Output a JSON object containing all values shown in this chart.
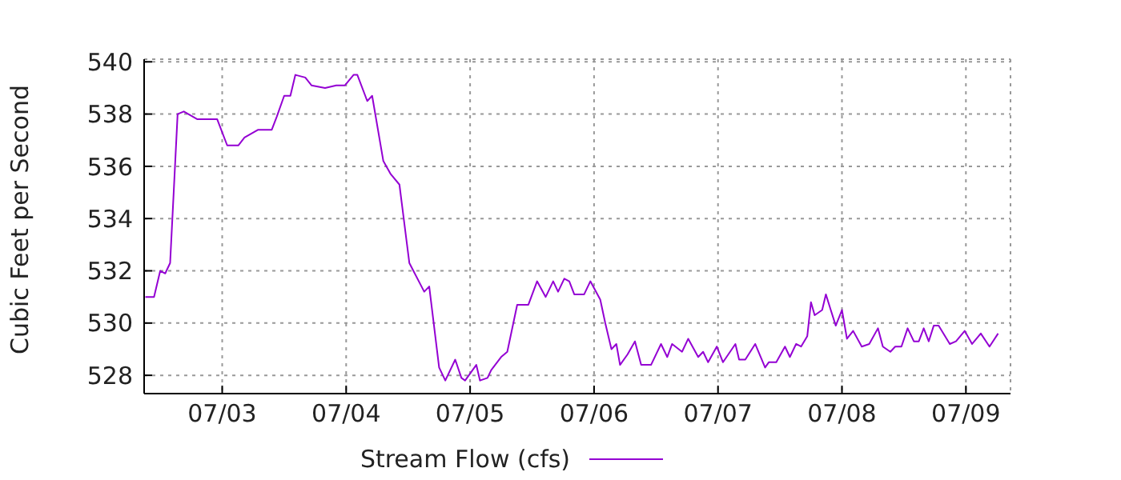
{
  "chart_data": {
    "type": "line",
    "ylabel": "Cubic Feet per Second",
    "legend": "bottom",
    "grid": true,
    "marker": "none",
    "line_style": "solid",
    "xlim": [
      "--07-02T08:53",
      "--07-09T08:38"
    ],
    "ylim": [
      527.3,
      540.1
    ],
    "xticks": [
      {
        "value": "--07-03",
        "label": "07/03"
      },
      {
        "value": "--07-04",
        "label": "07/04"
      },
      {
        "value": "--07-05",
        "label": "07/05"
      },
      {
        "value": "--07-06",
        "label": "07/06"
      },
      {
        "value": "--07-07",
        "label": "07/07"
      },
      {
        "value": "--07-08",
        "label": "07/08"
      },
      {
        "value": "--07-09",
        "label": "07/09"
      }
    ],
    "yticks": [
      528,
      530,
      532,
      534,
      536,
      538,
      540
    ],
    "x": [
      "--07-02T09:07",
      "--07-02T10:48",
      "--07-02T12:00",
      "--07-02T12:58",
      "--07-02T13:55",
      "--07-02T14:38",
      "--07-02T15:22",
      "--07-02T16:34",
      "--07-02T19:12",
      "--07-02T23:02",
      "--07-03T00:58",
      "--07-03T03:07",
      "--07-03T04:19",
      "--07-03T06:58",
      "--07-03T09:36",
      "--07-03T10:34",
      "--07-03T12:00",
      "--07-03T13:12",
      "--07-03T14:10",
      "--07-03T16:05",
      "--07-03T17:17",
      "--07-03T19:55",
      "--07-03T22:05",
      "--07-03T23:46",
      "--07-04T01:26",
      "--07-04T02:10",
      "--07-04T04:05",
      "--07-04T05:02",
      "--07-04T07:12",
      "--07-04T08:38",
      "--07-04T10:19",
      "--07-04T12:14",
      "--07-04T15:07",
      "--07-04T16:05",
      "--07-04T18:00",
      "--07-04T19:12",
      "--07-04T21:07",
      "--07-04T22:19",
      "--07-04T23:02",
      "--07-05T01:12",
      "--07-05T01:55",
      "--07-05T03:22",
      "--07-05T04:05",
      "--07-05T06:00",
      "--07-05T07:12",
      "--07-05T09:07",
      "--07-05T11:17",
      "--07-05T12:58",
      "--07-05T14:38",
      "--07-05T16:05",
      "--07-05T17:02",
      "--07-05T18:14",
      "--07-05T19:12",
      "--07-05T20:10",
      "--07-05T22:05",
      "--07-05T23:17",
      "--07-06T01:12",
      "--07-06T02:10",
      "--07-06T03:22",
      "--07-06T04:19",
      "--07-06T05:02",
      "--07-06T06:29",
      "--07-06T07:55",
      "--07-06T09:07",
      "--07-06T11:02",
      "--07-06T12:58",
      "--07-06T14:10",
      "--07-06T15:07",
      "--07-06T17:02",
      "--07-06T18:14",
      "--07-06T20:10",
      "--07-06T21:07",
      "--07-06T22:05",
      "--07-06T23:46",
      "--07-07T00:58",
      "--07-07T03:22",
      "--07-07T04:05",
      "--07-07T05:17",
      "--07-07T07:12",
      "--07-07T09:07",
      "--07-07T09:50",
      "--07-07T11:17",
      "--07-07T12:58",
      "--07-07T13:55",
      "--07-07T15:07",
      "--07-07T16:05",
      "--07-07T17:17",
      "--07-07T18:00",
      "--07-07T18:43",
      "--07-07T20:10",
      "--07-07T20:53",
      "--07-07T21:50",
      "--07-07T22:48",
      "--07-08T00:00",
      "--07-08T00:58",
      "--07-08T02:10",
      "--07-08T03:50",
      "--07-08T05:17",
      "--07-08T06:58",
      "--07-08T07:55",
      "--07-08T09:22",
      "--07-08T10:19",
      "--07-08T11:31",
      "--07-08T12:43",
      "--07-08T13:55",
      "--07-08T14:53",
      "--07-08T15:50",
      "--07-08T16:48",
      "--07-08T17:46",
      "--07-08T18:43",
      "--07-08T20:53",
      "--07-08T22:05",
      "--07-08T23:46",
      "--07-09T01:12",
      "--07-09T02:53",
      "--07-09T04:34",
      "--07-09T06:14"
    ],
    "series": [
      {
        "name": "Stream Flow (cfs)",
        "color": "#9400d3",
        "values": [
          531.0,
          531.0,
          532.0,
          531.9,
          532.3,
          535.1,
          538.0,
          538.1,
          537.8,
          537.8,
          536.8,
          536.8,
          537.1,
          537.4,
          537.4,
          537.9,
          538.7,
          538.7,
          539.5,
          539.4,
          539.1,
          539.0,
          539.1,
          539.1,
          539.5,
          539.5,
          538.5,
          538.7,
          536.2,
          535.7,
          535.3,
          532.3,
          531.2,
          531.4,
          528.3,
          527.8,
          528.6,
          527.9,
          527.8,
          528.4,
          527.8,
          527.9,
          528.2,
          528.7,
          528.9,
          530.7,
          530.7,
          531.6,
          531.0,
          531.6,
          531.2,
          531.7,
          531.6,
          531.1,
          531.1,
          531.6,
          530.9,
          530.0,
          529.0,
          529.2,
          528.4,
          528.8,
          529.3,
          528.4,
          528.4,
          529.2,
          528.7,
          529.2,
          528.9,
          529.4,
          528.7,
          528.9,
          528.5,
          529.1,
          528.5,
          529.2,
          528.6,
          528.6,
          529.2,
          528.3,
          528.5,
          528.5,
          529.1,
          528.7,
          529.2,
          529.1,
          529.5,
          530.8,
          530.3,
          530.5,
          531.1,
          530.5,
          529.9,
          530.5,
          529.4,
          529.7,
          529.1,
          529.2,
          529.8,
          529.1,
          528.9,
          529.1,
          529.1,
          529.8,
          529.3,
          529.3,
          529.8,
          529.3,
          529.9,
          529.9,
          529.2,
          529.3,
          529.7,
          529.2,
          529.6,
          529.1,
          529.6
        ]
      }
    ]
  }
}
